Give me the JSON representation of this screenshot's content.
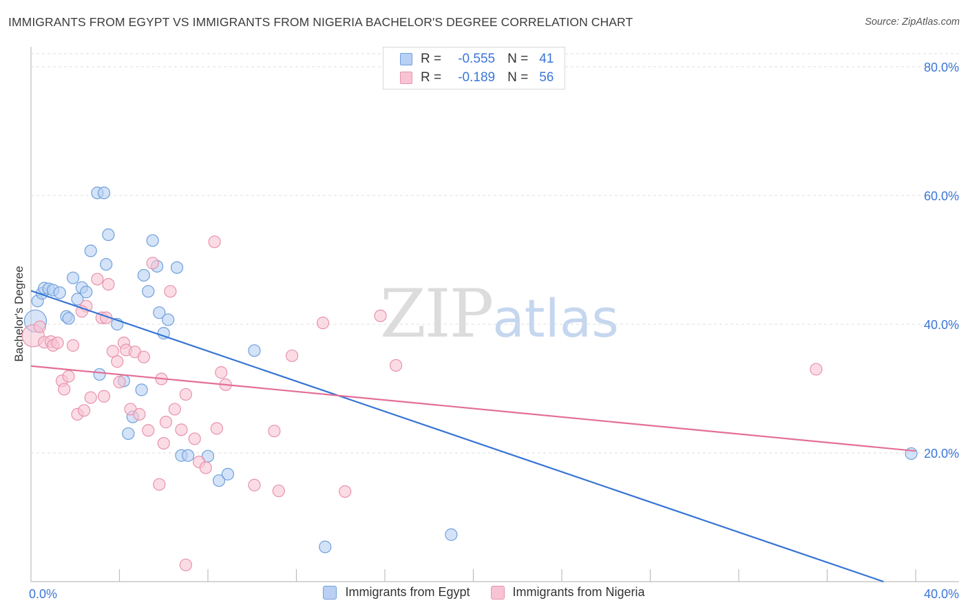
{
  "header": {
    "title": "IMMIGRANTS FROM EGYPT VS IMMIGRANTS FROM NIGERIA BACHELOR'S DEGREE CORRELATION CHART",
    "source": "Source: ZipAtlas.com"
  },
  "watermark": {
    "zip": "ZIP",
    "atlas": "atlas"
  },
  "stats_legend": {
    "egypt": {
      "r_label": "R =",
      "r_value": "-0.555",
      "n_label": "N =",
      "n_value": "41"
    },
    "nigeria": {
      "r_label": "R =",
      "r_value": "-0.189",
      "n_label": "N =",
      "n_value": "56"
    }
  },
  "series_legend": {
    "egypt": "Immigrants from Egypt",
    "nigeria": "Immigrants from Nigeria"
  },
  "colors": {
    "egypt_fill": "#b8d0f3",
    "egypt_stroke": "#6f9fdc",
    "egypt_line": "#3574d4",
    "nigeria_fill": "#f8c4d4",
    "nigeria_stroke": "#e792ad",
    "nigeria_line": "#e46e95",
    "tick_label": "#3a76d8",
    "grid": "#dcdcdc"
  },
  "chart_data": {
    "type": "scatter",
    "title": "IMMIGRANTS FROM EGYPT VS IMMIGRANTS FROM NIGERIA BACHELOR'S DEGREE CORRELATION CHART",
    "xlabel": "",
    "ylabel": "Bachelor's Degree",
    "xlim": [
      0,
      40
    ],
    "ylim": [
      0,
      80
    ],
    "x_tick_labels": [
      "0.0%",
      "40.0%"
    ],
    "y_ticks": [
      20,
      40,
      60,
      80
    ],
    "y_tick_labels": [
      "20.0%",
      "40.0%",
      "60.0%",
      "80.0%"
    ],
    "series": [
      {
        "name": "Immigrants from Egypt",
        "key": "egypt",
        "trend": {
          "x": [
            0,
            40
          ],
          "y": [
            45.2,
            -1.7
          ]
        },
        "points": [
          [
            0.2,
            40.5
          ],
          [
            0.3,
            43.6
          ],
          [
            0.5,
            44.8
          ],
          [
            0.6,
            45.6
          ],
          [
            0.8,
            45.5
          ],
          [
            1.0,
            45.3
          ],
          [
            1.3,
            44.9
          ],
          [
            1.6,
            41.2
          ],
          [
            1.7,
            40.9
          ],
          [
            1.9,
            47.2
          ],
          [
            2.1,
            43.9
          ],
          [
            2.3,
            45.7
          ],
          [
            2.5,
            45.0
          ],
          [
            2.7,
            51.4
          ],
          [
            3.0,
            60.4
          ],
          [
            3.3,
            60.4
          ],
          [
            3.4,
            49.3
          ],
          [
            3.5,
            53.9
          ],
          [
            3.9,
            40.0
          ],
          [
            4.2,
            31.2
          ],
          [
            4.4,
            23.0
          ],
          [
            4.6,
            25.6
          ],
          [
            5.0,
            29.8
          ],
          [
            5.1,
            47.6
          ],
          [
            5.3,
            45.1
          ],
          [
            5.5,
            53.0
          ],
          [
            5.7,
            49.0
          ],
          [
            5.8,
            41.8
          ],
          [
            6.0,
            38.6
          ],
          [
            6.2,
            40.7
          ],
          [
            6.6,
            48.8
          ],
          [
            6.8,
            19.6
          ],
          [
            7.1,
            19.6
          ],
          [
            8.0,
            19.5
          ],
          [
            8.5,
            15.7
          ],
          [
            8.9,
            16.7
          ],
          [
            10.1,
            35.9
          ],
          [
            3.1,
            32.2
          ],
          [
            13.3,
            5.4
          ],
          [
            19.0,
            7.3
          ],
          [
            39.8,
            19.9
          ]
        ]
      },
      {
        "name": "Immigrants from Nigeria",
        "key": "nigeria",
        "trend": {
          "x": [
            0,
            40
          ],
          "y": [
            33.5,
            20.3
          ]
        },
        "points": [
          [
            0.1,
            38.2
          ],
          [
            0.4,
            39.6
          ],
          [
            0.6,
            37.2
          ],
          [
            0.9,
            37.3
          ],
          [
            1.0,
            36.7
          ],
          [
            1.2,
            37.1
          ],
          [
            1.4,
            31.2
          ],
          [
            1.5,
            29.9
          ],
          [
            1.7,
            31.9
          ],
          [
            1.9,
            36.7
          ],
          [
            2.1,
            26.0
          ],
          [
            2.4,
            26.6
          ],
          [
            2.5,
            42.8
          ],
          [
            2.3,
            42.0
          ],
          [
            2.7,
            28.6
          ],
          [
            3.0,
            47.0
          ],
          [
            3.2,
            41.0
          ],
          [
            3.3,
            28.8
          ],
          [
            3.5,
            46.2
          ],
          [
            3.7,
            35.8
          ],
          [
            3.9,
            34.2
          ],
          [
            4.0,
            31.0
          ],
          [
            4.2,
            37.1
          ],
          [
            4.3,
            36.0
          ],
          [
            4.5,
            26.8
          ],
          [
            4.7,
            35.7
          ],
          [
            4.9,
            26.0
          ],
          [
            5.1,
            34.9
          ],
          [
            5.3,
            23.5
          ],
          [
            5.5,
            49.5
          ],
          [
            5.8,
            15.1
          ],
          [
            5.9,
            31.5
          ],
          [
            6.0,
            21.5
          ],
          [
            6.1,
            24.8
          ],
          [
            6.3,
            45.1
          ],
          [
            6.5,
            26.8
          ],
          [
            6.8,
            23.6
          ],
          [
            7.0,
            29.1
          ],
          [
            7.0,
            2.6
          ],
          [
            7.4,
            22.2
          ],
          [
            7.6,
            18.6
          ],
          [
            7.9,
            17.7
          ],
          [
            8.3,
            52.8
          ],
          [
            8.4,
            23.8
          ],
          [
            8.6,
            32.5
          ],
          [
            8.8,
            30.6
          ],
          [
            10.1,
            15.0
          ],
          [
            11.0,
            23.4
          ],
          [
            11.2,
            14.1
          ],
          [
            11.8,
            35.1
          ],
          [
            13.2,
            40.2
          ],
          [
            14.2,
            14.0
          ],
          [
            15.8,
            41.3
          ],
          [
            16.5,
            33.6
          ],
          [
            35.5,
            33.0
          ],
          [
            3.4,
            41.0
          ]
        ]
      }
    ]
  }
}
